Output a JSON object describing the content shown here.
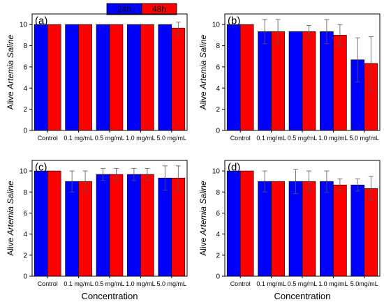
{
  "legend": {
    "placement": "top-center",
    "entries": [
      {
        "label": "24h",
        "color": "#0000ff"
      },
      {
        "label": "48h",
        "color": "#ff0000"
      }
    ]
  },
  "chart_data": [
    {
      "type": "bar",
      "panel_label": "(a)",
      "categories": [
        "Control",
        "0.1 mg/mL",
        "0.5 mg/mL",
        "1.0 mg/mL",
        "5.0 mg/mL"
      ],
      "ylabel_prefix": "Alive ",
      "ylabel_italic": "Artemia Saline",
      "xlabel": "",
      "ylim": [
        0,
        11
      ],
      "yticks": [
        0,
        2,
        4,
        6,
        8,
        10
      ],
      "series": [
        {
          "name": "24h",
          "color": "#0000ff",
          "values": [
            10,
            10,
            10,
            10,
            10
          ],
          "errors": [
            0,
            0,
            0,
            0,
            0
          ]
        },
        {
          "name": "48h",
          "color": "#ff0000",
          "values": [
            10,
            10,
            10,
            10,
            9.67
          ],
          "errors": [
            0,
            0,
            0,
            0,
            0.55
          ]
        }
      ]
    },
    {
      "type": "bar",
      "panel_label": "(b)",
      "categories": [
        "Control",
        "0.1 mg/mL",
        "0.5 mg/mL",
        "1.0 mg/mL",
        "5.0 mg/mL"
      ],
      "ylabel_prefix": "Alive ",
      "ylabel_italic": "Artemia Saline",
      "xlabel": "",
      "ylim": [
        0,
        11
      ],
      "yticks": [
        0,
        2,
        4,
        6,
        8,
        10
      ],
      "series": [
        {
          "name": "24h",
          "color": "#0000ff",
          "values": [
            10,
            9.33,
            9.33,
            9.33,
            6.67
          ],
          "errors": [
            0,
            1.15,
            0,
            1.15,
            2.08
          ]
        },
        {
          "name": "48h",
          "color": "#ff0000",
          "values": [
            10,
            9.33,
            9.33,
            9.0,
            6.33
          ],
          "errors": [
            0,
            1.15,
            0.58,
            1.0,
            2.52
          ]
        }
      ]
    },
    {
      "type": "bar",
      "panel_label": "(c)",
      "categories": [
        "Control",
        "0.1 mg/mL",
        "0.5 mg/mL",
        "1.0 mg/mL",
        "5.0 mg/mL"
      ],
      "ylabel_prefix": "Alive ",
      "ylabel_italic": "Artemia Saline",
      "xlabel": "Concentration",
      "ylim": [
        0,
        11
      ],
      "yticks": [
        0,
        2,
        4,
        6,
        8,
        10
      ],
      "series": [
        {
          "name": "24h",
          "color": "#0000ff",
          "values": [
            10,
            9.0,
            9.67,
            9.67,
            9.33
          ],
          "errors": [
            0,
            1.0,
            0.58,
            0.58,
            1.15
          ]
        },
        {
          "name": "48h",
          "color": "#ff0000",
          "values": [
            10,
            9.0,
            9.67,
            9.67,
            9.33
          ],
          "errors": [
            0,
            1.0,
            0.58,
            0.58,
            1.15
          ]
        }
      ]
    },
    {
      "type": "bar",
      "panel_label": "(d)",
      "categories": [
        "Control",
        "0.1 mg/mL",
        "0.5 mg/mL",
        "1.0 mg/mL",
        "5.0mg/mL"
      ],
      "ylabel_prefix": "Alive ",
      "ylabel_italic": "Artemia Saline",
      "xlabel": "Concentration",
      "ylim": [
        0,
        11
      ],
      "yticks": [
        0,
        2,
        4,
        6,
        8,
        10
      ],
      "series": [
        {
          "name": "24h",
          "color": "#0000ff",
          "values": [
            10,
            9.0,
            9.0,
            9.0,
            8.67
          ],
          "errors": [
            0,
            1.0,
            1.15,
            1.0,
            0.58
          ]
        },
        {
          "name": "48h",
          "color": "#ff0000",
          "values": [
            10,
            9.0,
            9.0,
            8.67,
            8.33
          ],
          "errors": [
            0,
            0,
            1.0,
            0.58,
            1.15
          ]
        }
      ]
    }
  ]
}
